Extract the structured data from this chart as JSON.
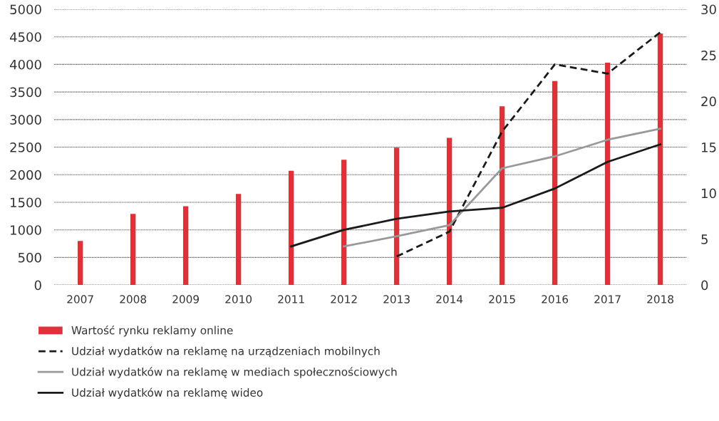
{
  "chart_data": {
    "type": "bar",
    "categories": [
      "2007",
      "2008",
      "2009",
      "2010",
      "2011",
      "2012",
      "2013",
      "2014",
      "2015",
      "2016",
      "2017",
      "2018"
    ],
    "series": [
      {
        "name": "Wartość rynku reklamy online",
        "color": "#e0303a",
        "values": [
          800,
          1290,
          1430,
          1650,
          2070,
          2270,
          2490,
          2670,
          3240,
          3700,
          4030,
          4560
        ]
      },
      {
        "name": "Udział wydatków na reklamę na urządzeniach mobilnych",
        "type": "line",
        "axis": "y2",
        "color": "#1a1a1a",
        "line_style": "dashed",
        "values": [
          null,
          null,
          null,
          null,
          null,
          null,
          3.1,
          5.8,
          16.7,
          24.0,
          23.0,
          27.5
        ]
      },
      {
        "name": "Udział wydatków na reklamę w mediach społecznościowych",
        "type": "line",
        "axis": "y2",
        "color": "#999999",
        "line_style": "solid",
        "values": [
          null,
          null,
          null,
          null,
          null,
          4.2,
          5.3,
          6.5,
          12.7,
          14.0,
          15.8,
          17.0
        ]
      },
      {
        "name": "Udział wydatków na reklamę wideo",
        "type": "line",
        "axis": "y2",
        "color": "#1a1a1a",
        "line_style": "solid",
        "values": [
          null,
          null,
          null,
          null,
          4.2,
          6.0,
          7.2,
          8.0,
          8.4,
          10.5,
          13.4,
          15.3
        ]
      }
    ],
    "ylim": [
      0,
      5000
    ],
    "yticks": [
      0,
      500,
      1000,
      1500,
      2000,
      2500,
      3000,
      3500,
      4000,
      4500,
      5000
    ],
    "y2lim": [
      0,
      30
    ],
    "y2ticks": [
      0,
      5,
      10,
      15,
      20,
      25,
      30
    ],
    "grid": "y",
    "legend": "bottom",
    "marker": "none"
  }
}
